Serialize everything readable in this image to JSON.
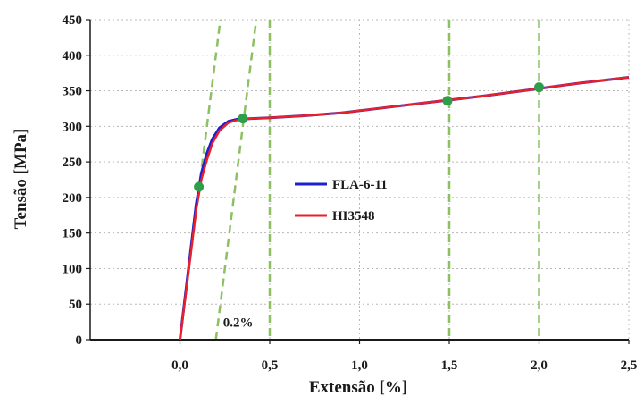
{
  "chart_data": {
    "type": "line",
    "xlabel": "Extensão [%]",
    "ylabel": "Tensão [MPa]",
    "xlim": [
      -0.5,
      2.5
    ],
    "ylim": [
      0,
      450
    ],
    "x_ticks": [
      0.0,
      0.5,
      1.0,
      1.5,
      2.0,
      2.5
    ],
    "x_tick_labels": [
      "0,0",
      "0,5",
      "1,0",
      "1,5",
      "2,0",
      "2,5"
    ],
    "y_ticks": [
      0,
      50,
      100,
      150,
      200,
      250,
      300,
      350,
      400,
      450
    ],
    "y_tick_labels": [
      "0",
      "50",
      "100",
      "150",
      "200",
      "250",
      "300",
      "350",
      "400",
      "450"
    ],
    "grid": true,
    "legend_position": "center",
    "series": [
      {
        "name": "FLA-6-11",
        "color": "#1f1fcc",
        "x": [
          0.0,
          0.05,
          0.09,
          0.12,
          0.15,
          0.18,
          0.22,
          0.27,
          0.32,
          0.4,
          0.5,
          0.7,
          0.9,
          1.1,
          1.3,
          1.5,
          1.7,
          2.0,
          2.2,
          2.5
        ],
        "y": [
          0,
          105,
          190,
          235,
          262,
          282,
          298,
          307,
          310,
          311,
          312,
          315,
          319,
          325,
          331,
          337,
          343,
          353,
          360,
          369
        ]
      },
      {
        "name": "HI3548",
        "color": "#e8202a",
        "x": [
          0.0,
          0.05,
          0.09,
          0.12,
          0.15,
          0.18,
          0.22,
          0.27,
          0.32,
          0.4,
          0.5,
          0.7,
          0.9,
          1.1,
          1.3,
          1.5,
          1.7,
          2.0,
          2.2,
          2.5
        ],
        "y": [
          0,
          100,
          182,
          226,
          253,
          276,
          294,
          305,
          309,
          311,
          312,
          315,
          319,
          325,
          331,
          337,
          343,
          353,
          360,
          369
        ]
      }
    ],
    "markers": {
      "color": "#2e9e4a",
      "points": [
        {
          "x": 0.105,
          "y": 215
        },
        {
          "x": 0.35,
          "y": 311
        },
        {
          "x": 1.49,
          "y": 336
        },
        {
          "x": 2.0,
          "y": 355
        }
      ]
    },
    "guide_lines": {
      "color": "#8cc063",
      "vertical_x": [
        0.5,
        1.5,
        2.0
      ],
      "offset_lines": [
        {
          "x0": 0.0,
          "slope_per_pct": 2000
        },
        {
          "x0": 0.2,
          "slope_per_pct": 2000
        }
      ]
    },
    "annotations": [
      {
        "text": "0.2%",
        "x": 0.24,
        "y": 18
      }
    ]
  }
}
